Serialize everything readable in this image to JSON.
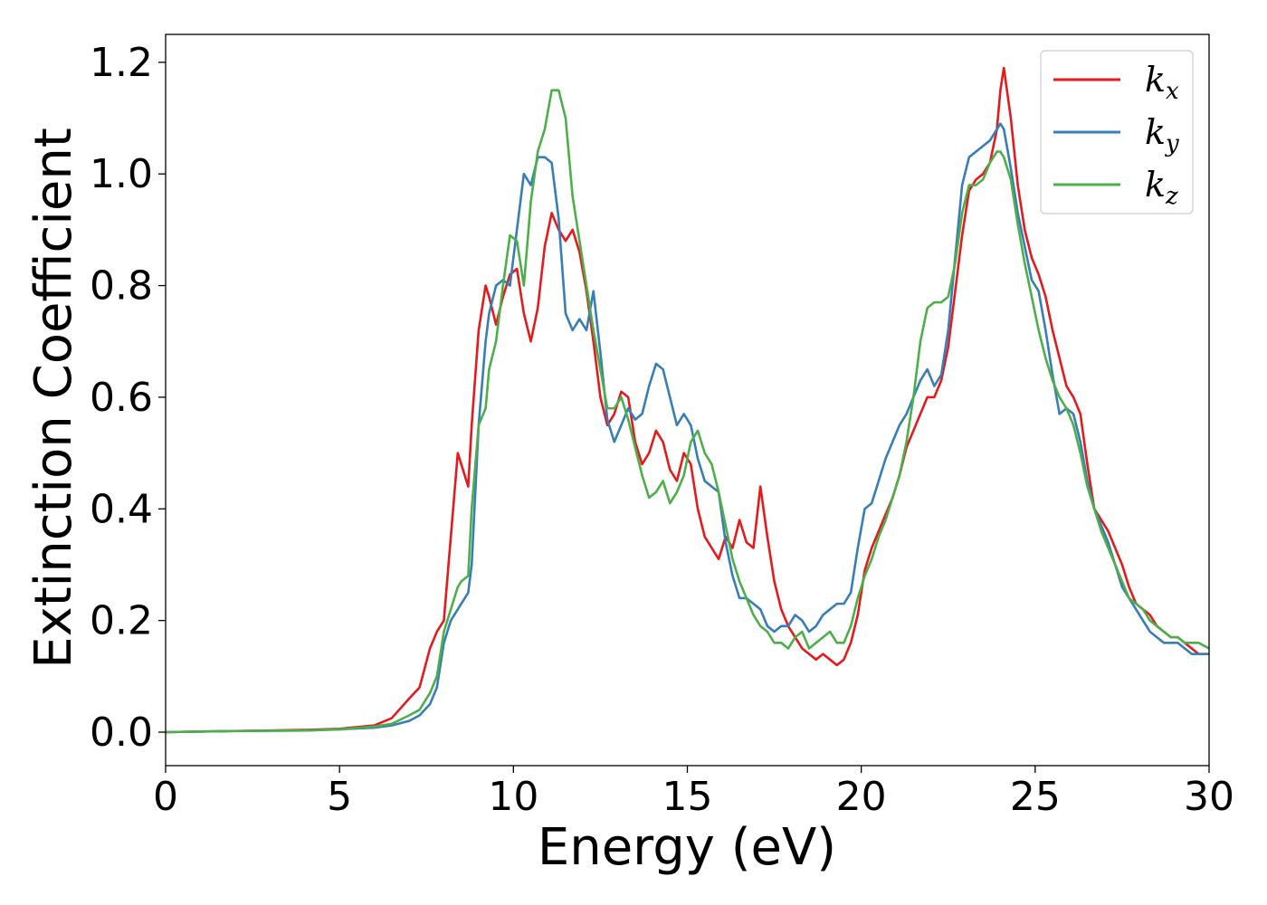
{
  "chart_data": {
    "type": "line",
    "xlabel": "Energy (eV)",
    "ylabel": "Extinction Coefficient",
    "xlim": [
      0,
      30
    ],
    "ylim": [
      -0.06,
      1.25
    ],
    "xticks": [
      0,
      5,
      10,
      15,
      20,
      25,
      30
    ],
    "xtick_labels": [
      "0",
      "5",
      "10",
      "15",
      "20",
      "25",
      "30"
    ],
    "yticks": [
      0.0,
      0.2,
      0.4,
      0.6,
      0.8,
      1.0,
      1.2
    ],
    "ytick_labels": [
      "0.0",
      "0.2",
      "0.4",
      "0.6",
      "0.8",
      "1.0",
      "1.2"
    ],
    "grid": false,
    "legend_position": "top-right",
    "series": [
      {
        "name": "k_x",
        "legend_main": "k",
        "legend_sub": "x",
        "color": "#e41a1c",
        "x": [
          0,
          2,
          4,
          5,
          6,
          6.5,
          7,
          7.3,
          7.6,
          7.8,
          8.0,
          8.2,
          8.4,
          8.5,
          8.7,
          8.8,
          9.0,
          9.2,
          9.3,
          9.5,
          9.7,
          9.9,
          10.1,
          10.3,
          10.5,
          10.7,
          10.9,
          11.1,
          11.3,
          11.5,
          11.7,
          11.9,
          12.1,
          12.3,
          12.5,
          12.7,
          12.9,
          13.1,
          13.3,
          13.5,
          13.7,
          13.9,
          14.1,
          14.3,
          14.5,
          14.7,
          14.9,
          15.1,
          15.3,
          15.5,
          15.7,
          15.9,
          16.1,
          16.3,
          16.5,
          16.7,
          16.9,
          17.1,
          17.3,
          17.5,
          17.7,
          17.9,
          18.1,
          18.3,
          18.5,
          18.7,
          18.9,
          19.1,
          19.3,
          19.5,
          19.7,
          19.9,
          20.1,
          20.3,
          20.5,
          20.7,
          20.9,
          21.1,
          21.3,
          21.5,
          21.7,
          21.9,
          22.1,
          22.3,
          22.5,
          22.7,
          22.9,
          23.1,
          23.3,
          23.5,
          23.7,
          23.9,
          24.0,
          24.1,
          24.3,
          24.5,
          24.7,
          24.9,
          25.1,
          25.3,
          25.5,
          25.7,
          25.9,
          26.1,
          26.3,
          26.5,
          26.7,
          26.9,
          27.1,
          27.3,
          27.5,
          27.7,
          27.9,
          28.1,
          28.3,
          28.5,
          28.7,
          28.9,
          29.1,
          29.3,
          29.5,
          29.7,
          30
        ],
        "y": [
          0.0,
          0.002,
          0.004,
          0.006,
          0.012,
          0.025,
          0.06,
          0.08,
          0.15,
          0.18,
          0.2,
          0.35,
          0.5,
          0.48,
          0.44,
          0.55,
          0.72,
          0.8,
          0.78,
          0.73,
          0.78,
          0.82,
          0.83,
          0.75,
          0.7,
          0.76,
          0.87,
          0.93,
          0.9,
          0.88,
          0.9,
          0.86,
          0.79,
          0.7,
          0.6,
          0.55,
          0.57,
          0.61,
          0.6,
          0.52,
          0.48,
          0.5,
          0.54,
          0.52,
          0.47,
          0.45,
          0.5,
          0.48,
          0.4,
          0.35,
          0.33,
          0.31,
          0.35,
          0.33,
          0.38,
          0.34,
          0.33,
          0.44,
          0.35,
          0.27,
          0.22,
          0.19,
          0.17,
          0.15,
          0.14,
          0.13,
          0.14,
          0.13,
          0.12,
          0.13,
          0.16,
          0.21,
          0.29,
          0.33,
          0.36,
          0.39,
          0.42,
          0.46,
          0.51,
          0.54,
          0.57,
          0.6,
          0.6,
          0.63,
          0.69,
          0.79,
          0.89,
          0.97,
          0.99,
          1.0,
          1.02,
          1.08,
          1.15,
          1.19,
          1.1,
          0.98,
          0.9,
          0.85,
          0.82,
          0.78,
          0.72,
          0.67,
          0.62,
          0.6,
          0.57,
          0.48,
          0.4,
          0.38,
          0.36,
          0.33,
          0.3,
          0.26,
          0.23,
          0.22,
          0.21,
          0.19,
          0.18,
          0.17,
          0.17,
          0.16,
          0.15,
          0.14,
          0.14
        ]
      },
      {
        "name": "k_y",
        "legend_main": "k",
        "legend_sub": "y",
        "color": "#377eb8",
        "x": [
          0,
          2,
          4,
          5,
          6,
          6.5,
          7,
          7.3,
          7.6,
          7.8,
          8.0,
          8.2,
          8.4,
          8.5,
          8.7,
          8.8,
          9.0,
          9.2,
          9.3,
          9.5,
          9.7,
          9.9,
          10.1,
          10.3,
          10.5,
          10.7,
          10.9,
          11.1,
          11.3,
          11.5,
          11.7,
          11.9,
          12.1,
          12.3,
          12.5,
          12.7,
          12.9,
          13.1,
          13.3,
          13.5,
          13.7,
          13.9,
          14.1,
          14.3,
          14.5,
          14.7,
          14.9,
          15.1,
          15.3,
          15.5,
          15.7,
          15.9,
          16.1,
          16.3,
          16.5,
          16.7,
          16.9,
          17.1,
          17.3,
          17.5,
          17.7,
          17.9,
          18.1,
          18.3,
          18.5,
          18.7,
          18.9,
          19.1,
          19.3,
          19.5,
          19.7,
          19.9,
          20.1,
          20.3,
          20.5,
          20.7,
          20.9,
          21.1,
          21.3,
          21.5,
          21.7,
          21.9,
          22.1,
          22.3,
          22.5,
          22.7,
          22.9,
          23.1,
          23.3,
          23.5,
          23.7,
          23.9,
          24.0,
          24.1,
          24.3,
          24.5,
          24.7,
          24.9,
          25.1,
          25.3,
          25.5,
          25.7,
          25.9,
          26.1,
          26.3,
          26.5,
          26.7,
          26.9,
          27.1,
          27.3,
          27.5,
          27.7,
          27.9,
          28.1,
          28.3,
          28.5,
          28.7,
          28.9,
          29.1,
          29.3,
          29.5,
          29.7,
          30
        ],
        "y": [
          0.0,
          0.002,
          0.003,
          0.005,
          0.008,
          0.012,
          0.02,
          0.03,
          0.05,
          0.08,
          0.16,
          0.2,
          0.22,
          0.23,
          0.25,
          0.3,
          0.55,
          0.7,
          0.75,
          0.8,
          0.81,
          0.8,
          0.9,
          1.0,
          0.98,
          1.03,
          1.03,
          1.02,
          0.92,
          0.75,
          0.72,
          0.74,
          0.72,
          0.79,
          0.68,
          0.56,
          0.52,
          0.55,
          0.58,
          0.56,
          0.57,
          0.62,
          0.66,
          0.65,
          0.6,
          0.55,
          0.57,
          0.55,
          0.49,
          0.45,
          0.44,
          0.43,
          0.34,
          0.28,
          0.24,
          0.24,
          0.23,
          0.22,
          0.19,
          0.18,
          0.19,
          0.19,
          0.21,
          0.2,
          0.18,
          0.19,
          0.21,
          0.22,
          0.23,
          0.23,
          0.25,
          0.33,
          0.4,
          0.41,
          0.45,
          0.49,
          0.52,
          0.55,
          0.57,
          0.6,
          0.63,
          0.65,
          0.62,
          0.64,
          0.72,
          0.85,
          0.98,
          1.03,
          1.04,
          1.05,
          1.06,
          1.08,
          1.09,
          1.08,
          1.01,
          0.93,
          0.87,
          0.81,
          0.79,
          0.72,
          0.64,
          0.57,
          0.58,
          0.57,
          0.52,
          0.45,
          0.4,
          0.37,
          0.34,
          0.3,
          0.26,
          0.24,
          0.22,
          0.2,
          0.18,
          0.17,
          0.16,
          0.16,
          0.16,
          0.15,
          0.14,
          0.14,
          0.14
        ]
      },
      {
        "name": "k_z",
        "legend_main": "k",
        "legend_sub": "z",
        "color": "#4daf4a",
        "x": [
          0,
          2,
          4,
          5,
          6,
          6.5,
          7,
          7.3,
          7.6,
          7.8,
          8.0,
          8.2,
          8.4,
          8.5,
          8.7,
          8.8,
          9.0,
          9.2,
          9.3,
          9.5,
          9.7,
          9.9,
          10.1,
          10.3,
          10.5,
          10.7,
          10.9,
          11.1,
          11.3,
          11.5,
          11.7,
          11.9,
          12.1,
          12.3,
          12.5,
          12.7,
          12.9,
          13.1,
          13.3,
          13.5,
          13.7,
          13.9,
          14.1,
          14.3,
          14.5,
          14.7,
          14.9,
          15.1,
          15.3,
          15.5,
          15.7,
          15.9,
          16.1,
          16.3,
          16.5,
          16.7,
          16.9,
          17.1,
          17.3,
          17.5,
          17.7,
          17.9,
          18.1,
          18.3,
          18.5,
          18.7,
          18.9,
          19.1,
          19.3,
          19.5,
          19.7,
          19.9,
          20.1,
          20.3,
          20.5,
          20.7,
          20.9,
          21.1,
          21.3,
          21.5,
          21.7,
          21.9,
          22.1,
          22.3,
          22.5,
          22.7,
          22.9,
          23.1,
          23.3,
          23.5,
          23.7,
          23.9,
          24.0,
          24.1,
          24.3,
          24.5,
          24.7,
          24.9,
          25.1,
          25.3,
          25.5,
          25.7,
          25.9,
          26.1,
          26.3,
          26.5,
          26.7,
          26.9,
          27.1,
          27.3,
          27.5,
          27.7,
          27.9,
          28.1,
          28.3,
          28.5,
          28.7,
          28.9,
          29.1,
          29.3,
          29.5,
          29.7,
          30
        ],
        "y": [
          0.0,
          0.002,
          0.003,
          0.005,
          0.01,
          0.015,
          0.03,
          0.04,
          0.07,
          0.1,
          0.18,
          0.22,
          0.26,
          0.27,
          0.28,
          0.4,
          0.55,
          0.58,
          0.65,
          0.7,
          0.8,
          0.89,
          0.88,
          0.8,
          0.95,
          1.04,
          1.08,
          1.15,
          1.15,
          1.1,
          0.96,
          0.88,
          0.8,
          0.72,
          0.65,
          0.58,
          0.58,
          0.6,
          0.56,
          0.51,
          0.46,
          0.42,
          0.43,
          0.45,
          0.41,
          0.43,
          0.46,
          0.52,
          0.54,
          0.5,
          0.48,
          0.43,
          0.37,
          0.31,
          0.27,
          0.24,
          0.21,
          0.19,
          0.18,
          0.16,
          0.16,
          0.15,
          0.17,
          0.18,
          0.15,
          0.16,
          0.17,
          0.18,
          0.16,
          0.16,
          0.19,
          0.24,
          0.28,
          0.31,
          0.35,
          0.38,
          0.42,
          0.46,
          0.52,
          0.6,
          0.7,
          0.76,
          0.77,
          0.77,
          0.78,
          0.84,
          0.93,
          0.98,
          0.98,
          0.99,
          1.02,
          1.04,
          1.04,
          1.03,
          0.99,
          0.91,
          0.84,
          0.78,
          0.72,
          0.67,
          0.63,
          0.6,
          0.58,
          0.55,
          0.5,
          0.44,
          0.4,
          0.36,
          0.33,
          0.3,
          0.27,
          0.24,
          0.23,
          0.22,
          0.2,
          0.19,
          0.18,
          0.17,
          0.17,
          0.16,
          0.16,
          0.16,
          0.15
        ]
      }
    ]
  }
}
